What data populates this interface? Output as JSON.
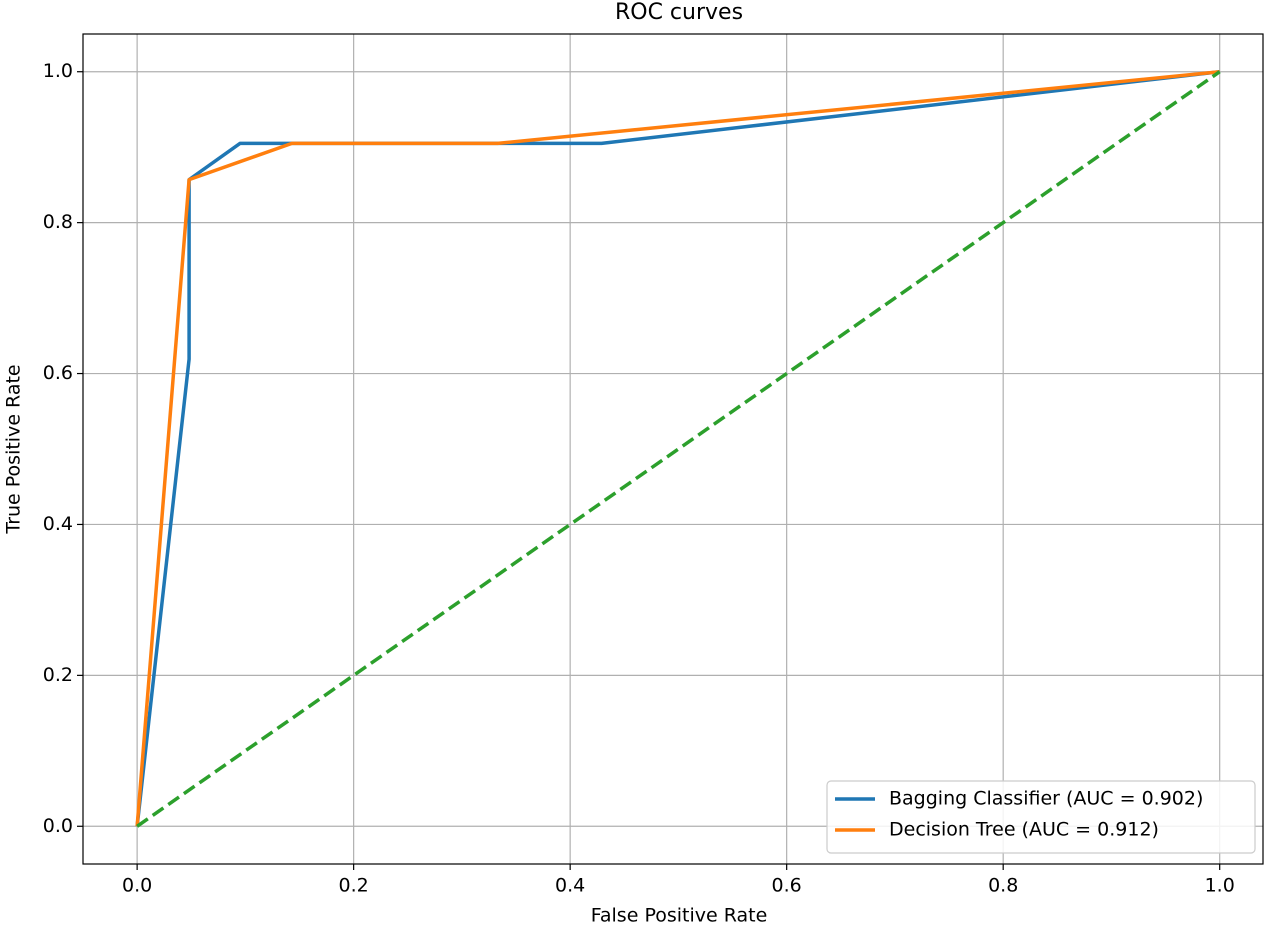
{
  "chart_data": {
    "type": "line",
    "title": "ROC curves",
    "x_label": "False Positive Rate",
    "y_label": "True Positive Rate",
    "series": [
      {
        "name": "Bagging Classifier (AUC = 0.902)",
        "color": "#1f77b4",
        "x": [
          0,
          0.048,
          0.048,
          0.095,
          0.429,
          1
        ],
        "values": [
          0,
          0.619,
          0.857,
          0.905,
          0.905,
          1
        ]
      },
      {
        "name": "Decision Tree (AUC = 0.912)",
        "color": "#ff7f0e",
        "x": [
          0,
          0.048,
          0.143,
          0.333,
          1
        ],
        "values": [
          0,
          0.857,
          0.905,
          0.905,
          1
        ]
      }
    ],
    "reference_line": {
      "x": [
        0,
        1
      ],
      "values": [
        0,
        1
      ],
      "color": "#2ca02c",
      "dashed": true
    },
    "xlim": [
      -0.05,
      1.04
    ],
    "ylim": [
      -0.05,
      1.05
    ],
    "xticks": [
      {
        "value": 0,
        "label": "0.0"
      },
      {
        "value": 0.2,
        "label": "0.2"
      },
      {
        "value": 0.4,
        "label": "0.4"
      },
      {
        "value": 0.6,
        "label": "0.6"
      },
      {
        "value": 0.8,
        "label": "0.8"
      },
      {
        "value": 1,
        "label": "1.0"
      }
    ],
    "yticks": [
      {
        "value": 0,
        "label": "0.0"
      },
      {
        "value": 0.2,
        "label": "0.2"
      },
      {
        "value": 0.4,
        "label": "0.4"
      },
      {
        "value": 0.6,
        "label": "0.6"
      },
      {
        "value": 0.8,
        "label": "0.8"
      },
      {
        "value": 1,
        "label": "1.0"
      }
    ],
    "grid": true,
    "legend": "lower right"
  }
}
